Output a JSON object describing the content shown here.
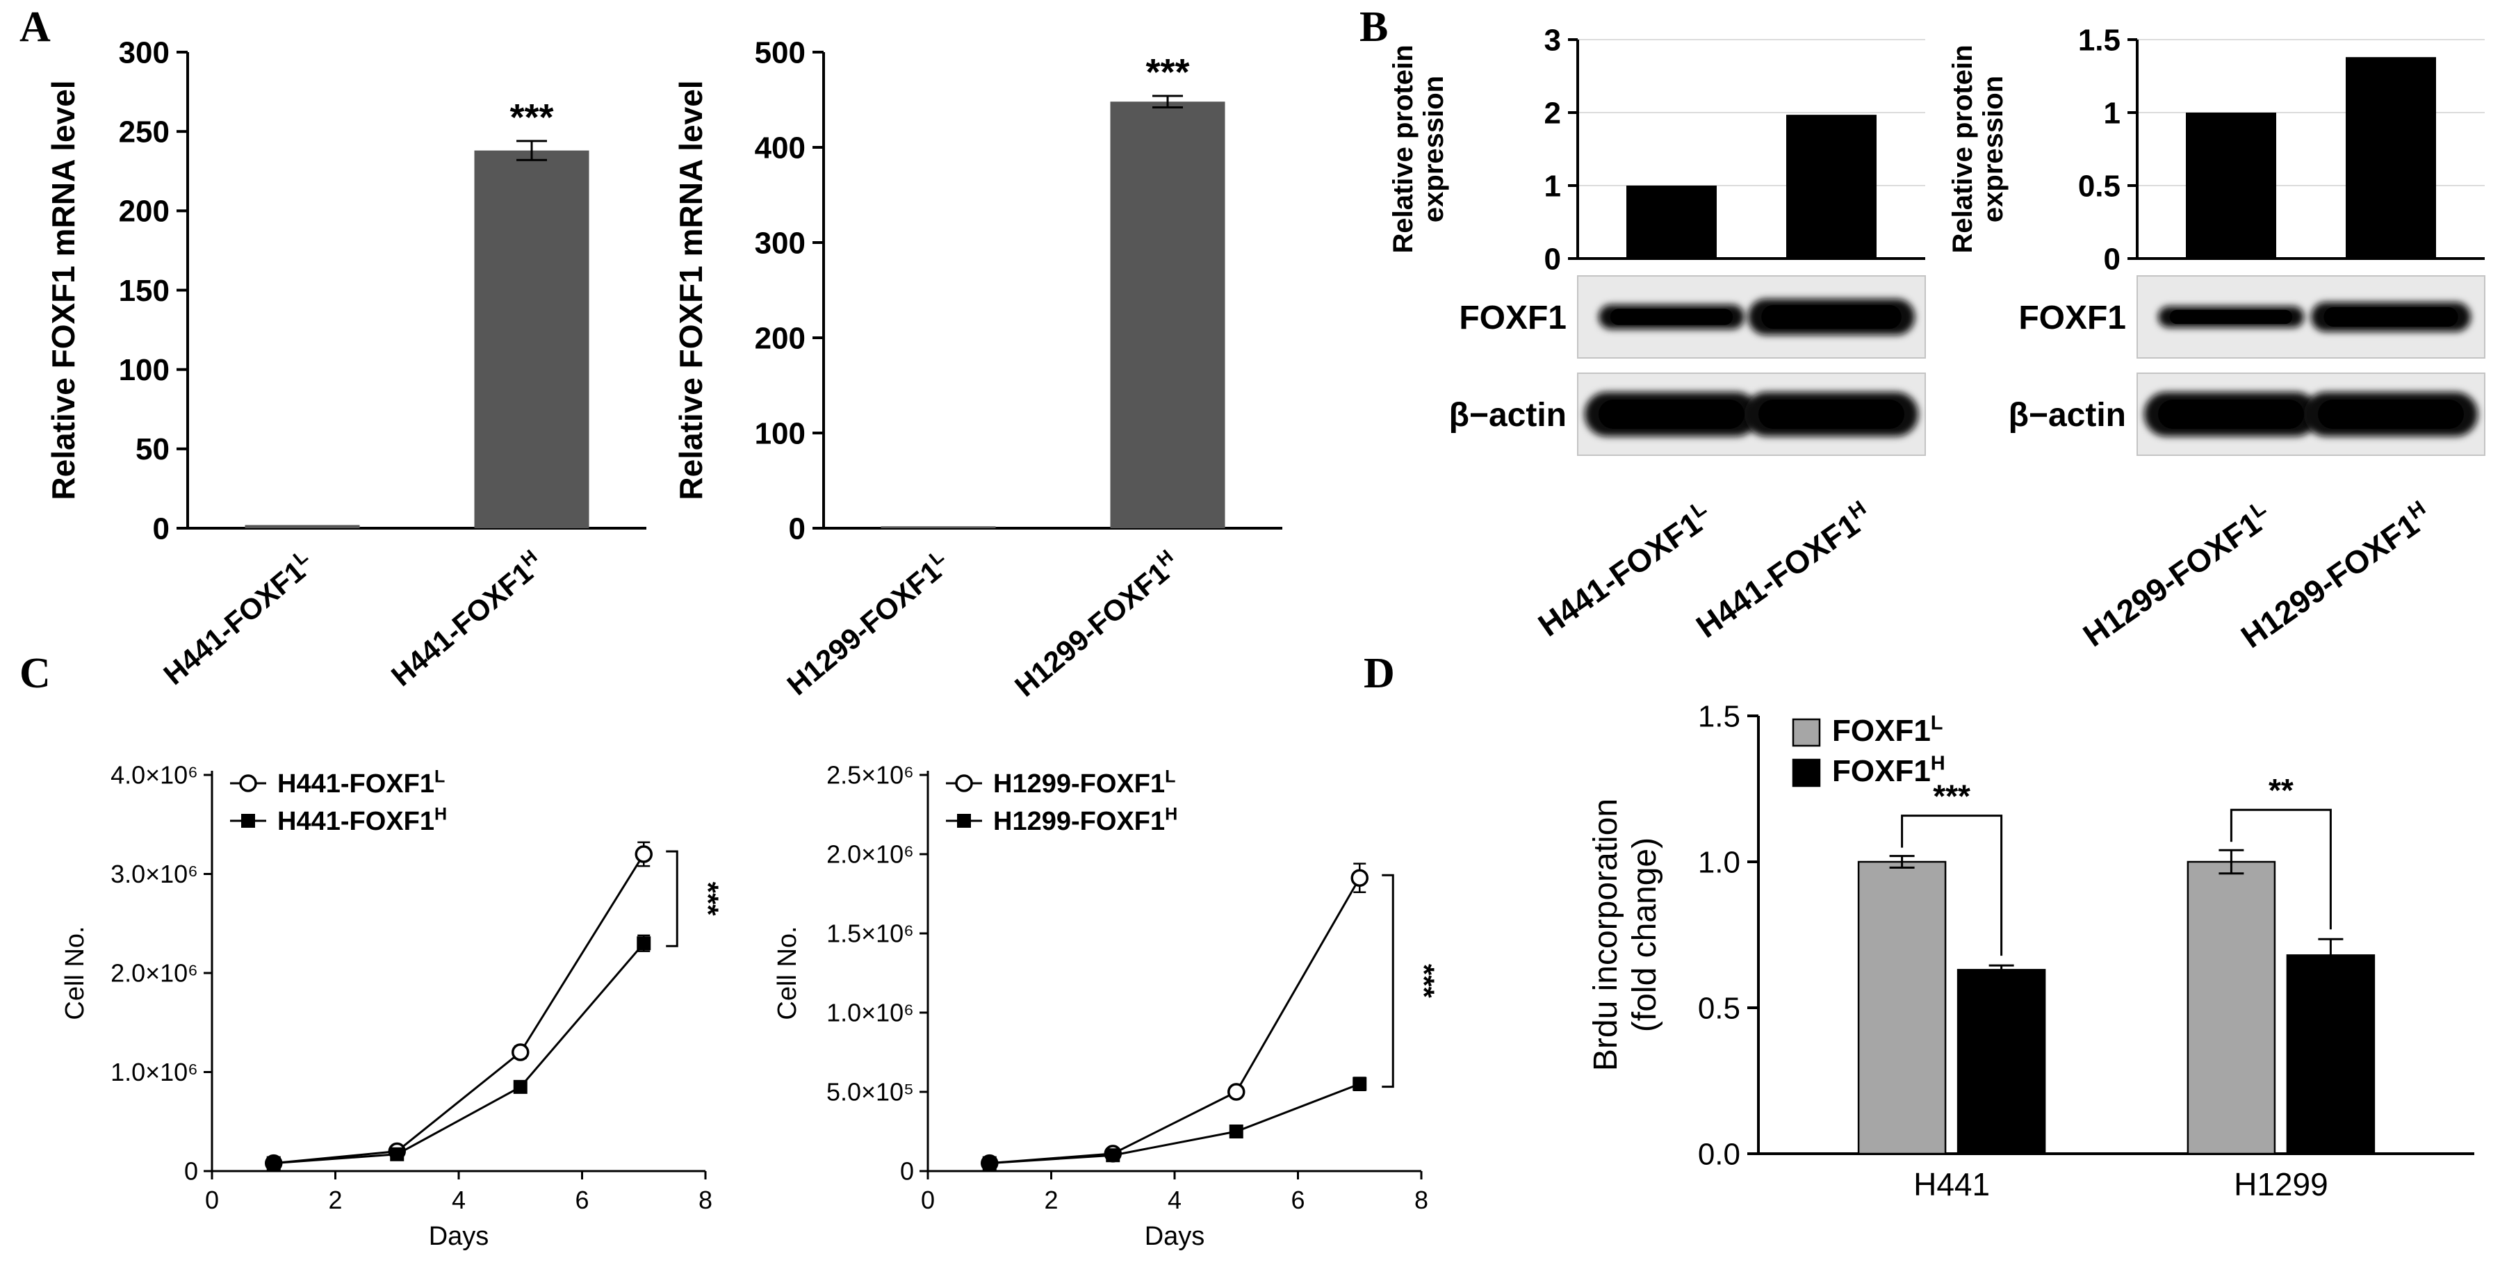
{
  "figure": {
    "background": "#ffffff",
    "description": "Multi-panel scientific figure: FOXF1 overexpression in H441 and H1299 lung cancer cells"
  },
  "panel_labels": {
    "a": "A",
    "b": "B",
    "c": "C",
    "d": "D"
  },
  "colors": {
    "axis": "#000000",
    "grid": "#dcdcdc",
    "bar_dark_gray": "#575757",
    "bar_black": "#000000",
    "bar_light_gray": "#a6a6a6",
    "blot_bg": "#e9e9e9",
    "blot_border": "#c4c4c4"
  },
  "chart_data": [
    {
      "id": "mrna_h441",
      "panel": "A",
      "type": "bar",
      "ylabel": "Relative FOXF1 mRNA level",
      "ylim": [
        0,
        300
      ],
      "yticks": [
        {
          "v": 0,
          "label": "0"
        },
        {
          "v": 50,
          "label": "50"
        },
        {
          "v": 100,
          "label": "100"
        },
        {
          "v": 150,
          "label": "150"
        },
        {
          "v": 200,
          "label": "200"
        },
        {
          "v": 250,
          "label": "250"
        },
        {
          "v": 300,
          "label": "300"
        }
      ],
      "categories": [
        {
          "text": "H441-FOXF1",
          "sup": "L"
        },
        {
          "text": "H441-FOXF1",
          "sup": "H"
        }
      ],
      "values": [
        2,
        238
      ],
      "errors": [
        1,
        6
      ],
      "sig": [
        {
          "category": 1,
          "label": "***"
        }
      ],
      "bar_color": "#575757",
      "grid": false,
      "legend_position": "none"
    },
    {
      "id": "mrna_h1299",
      "panel": "A",
      "type": "bar",
      "ylabel": "Relative FOXF1 mRNA level",
      "ylim": [
        0,
        500
      ],
      "yticks": [
        {
          "v": 0,
          "label": "0"
        },
        {
          "v": 100,
          "label": "100"
        },
        {
          "v": 200,
          "label": "200"
        },
        {
          "v": 300,
          "label": "300"
        },
        {
          "v": 400,
          "label": "400"
        },
        {
          "v": 500,
          "label": "500"
        }
      ],
      "categories": [
        {
          "text": "H1299-FOXF1",
          "sup": "L"
        },
        {
          "text": "H1299-FOXF1",
          "sup": "H"
        }
      ],
      "values": [
        2,
        448
      ],
      "errors": [
        1,
        6
      ],
      "sig": [
        {
          "category": 1,
          "label": "***"
        }
      ],
      "bar_color": "#575757",
      "grid": false,
      "legend_position": "none"
    },
    {
      "id": "protein_h441",
      "panel": "B",
      "type": "bar",
      "ylabel_lines": [
        "Relative protein",
        "expression"
      ],
      "ylim": [
        0,
        3
      ],
      "yticks": [
        {
          "v": 0,
          "label": "0"
        },
        {
          "v": 1,
          "label": "1"
        },
        {
          "v": 2,
          "label": "2"
        },
        {
          "v": 3,
          "label": "3"
        }
      ],
      "categories": [
        {
          "text": "H441-FOXF1",
          "sup": "L"
        },
        {
          "text": "H441-FOXF1",
          "sup": "H"
        }
      ],
      "values": [
        1.0,
        1.97
      ],
      "bar_color": "#000000",
      "grid": true,
      "blot": {
        "rows": [
          {
            "label": "FOXF1",
            "bands": [
              {
                "w": 0.42,
                "h": 0.3
              },
              {
                "w": 0.48,
                "h": 0.44
              }
            ]
          },
          {
            "label": "β−actin",
            "bands": [
              {
                "w": 0.5,
                "h": 0.54
              },
              {
                "w": 0.5,
                "h": 0.54
              }
            ]
          }
        ]
      }
    },
    {
      "id": "protein_h1299",
      "panel": "B",
      "type": "bar",
      "ylabel_lines": [
        "Relative protein",
        "expression"
      ],
      "ylim": [
        0,
        1.5
      ],
      "yticks": [
        {
          "v": 0,
          "label": "0"
        },
        {
          "v": 0.5,
          "label": "0.5"
        },
        {
          "v": 1,
          "label": "1"
        },
        {
          "v": 1.5,
          "label": "1.5"
        }
      ],
      "categories": [
        {
          "text": "H1299-FOXF1",
          "sup": "L"
        },
        {
          "text": "H1299-FOXF1",
          "sup": "H"
        }
      ],
      "values": [
        1.0,
        1.38
      ],
      "bar_color": "#000000",
      "grid": true,
      "blot": {
        "rows": [
          {
            "label": "FOXF1",
            "bands": [
              {
                "w": 0.42,
                "h": 0.26
              },
              {
                "w": 0.46,
                "h": 0.36
              }
            ]
          },
          {
            "label": "β−actin",
            "bands": [
              {
                "w": 0.5,
                "h": 0.54
              },
              {
                "w": 0.5,
                "h": 0.54
              }
            ]
          }
        ]
      }
    },
    {
      "id": "growth_h441",
      "panel": "C",
      "type": "line",
      "ylabel": "Cell No.",
      "xlabel": "Days",
      "xlim": [
        0,
        8
      ],
      "xticks": [
        0,
        2,
        4,
        6,
        8
      ],
      "ylim": [
        0,
        4000000
      ],
      "yticks": [
        {
          "v": 0,
          "label": "0"
        },
        {
          "v": 1000000,
          "label": "1.0×10⁶"
        },
        {
          "v": 2000000,
          "label": "2.0×10⁶"
        },
        {
          "v": 3000000,
          "label": "3.0×10⁶"
        },
        {
          "v": 4000000,
          "label": "4.0×10⁶"
        }
      ],
      "x": [
        1,
        3,
        5,
        7
      ],
      "series": [
        {
          "name": {
            "text": "H441-FOXF1",
            "sup": "L"
          },
          "marker": "open-circle",
          "values": [
            80000,
            200000,
            1200000,
            3200000
          ],
          "errors": [
            0,
            0,
            60000,
            120000
          ]
        },
        {
          "name": {
            "text": "H441-FOXF1",
            "sup": "H"
          },
          "marker": "filled-square",
          "values": [
            80000,
            170000,
            850000,
            2300000
          ],
          "errors": [
            0,
            0,
            40000,
            80000
          ]
        }
      ],
      "sig": "***",
      "legend_position": "top-left",
      "grid": false
    },
    {
      "id": "growth_h1299",
      "panel": "C",
      "type": "line",
      "ylabel": "Cell No.",
      "xlabel": "Days",
      "xlim": [
        0,
        8
      ],
      "xticks": [
        0,
        2,
        4,
        6,
        8
      ],
      "ylim": [
        0,
        2500000
      ],
      "yticks": [
        {
          "v": 0,
          "label": "0"
        },
        {
          "v": 500000,
          "label": "5.0×10⁵"
        },
        {
          "v": 1000000,
          "label": "1.0×10⁶"
        },
        {
          "v": 1500000,
          "label": "1.5×10⁶"
        },
        {
          "v": 2000000,
          "label": "2.0×10⁶"
        },
        {
          "v": 2500000,
          "label": "2.5×10⁶"
        }
      ],
      "x": [
        1,
        3,
        5,
        7
      ],
      "series": [
        {
          "name": {
            "text": "H1299-FOXF1",
            "sup": "L"
          },
          "marker": "open-circle",
          "values": [
            50000,
            110000,
            500000,
            1850000
          ],
          "errors": [
            0,
            0,
            30000,
            90000
          ]
        },
        {
          "name": {
            "text": "H1299-FOXF1",
            "sup": "H"
          },
          "marker": "filled-square",
          "values": [
            50000,
            100000,
            250000,
            550000
          ],
          "errors": [
            0,
            0,
            20000,
            40000
          ]
        }
      ],
      "sig": "***",
      "legend_position": "top-left",
      "grid": false
    },
    {
      "id": "brdu",
      "panel": "D",
      "type": "bar-grouped",
      "ylabel_lines": [
        "Brdu incorporation",
        "(fold change)"
      ],
      "ylim": [
        0,
        1.5
      ],
      "yticks": [
        {
          "v": 0,
          "label": "0.0"
        },
        {
          "v": 0.5,
          "label": "0.5"
        },
        {
          "v": 1,
          "label": "1.0"
        },
        {
          "v": 1.5,
          "label": "1.5"
        }
      ],
      "categories": [
        "H441",
        "H1299"
      ],
      "series": [
        {
          "name": {
            "text": "FOXF1",
            "sup": "L"
          },
          "color": "#a6a6a6",
          "values": [
            1.0,
            1.0
          ],
          "errors": [
            0.02,
            0.04
          ]
        },
        {
          "name": {
            "text": "FOXF1",
            "sup": "H"
          },
          "color": "#000000",
          "values": [
            0.63,
            0.68
          ],
          "errors": [
            0.015,
            0.055
          ]
        }
      ],
      "sig": [
        "***",
        "**"
      ],
      "legend_position": "top-left",
      "grid": false
    }
  ]
}
